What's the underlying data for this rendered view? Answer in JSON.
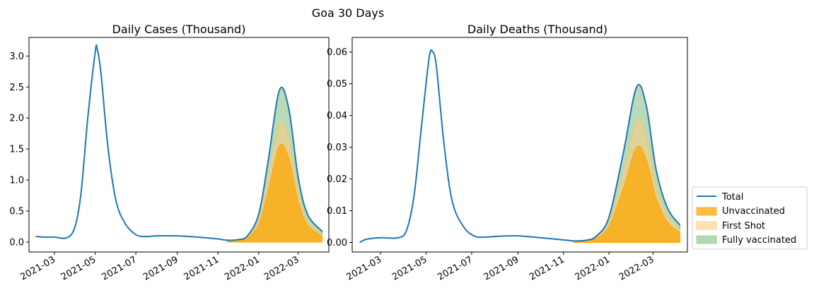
{
  "figure": {
    "suptitle": "Goa 30 Days"
  },
  "legend": {
    "placement": "lower-right outside",
    "entries": [
      {
        "label": "Total",
        "color": "#1f77b4",
        "kind": "line"
      },
      {
        "label": "Unvaccinated",
        "color": "#ffbb44",
        "kind": "area"
      },
      {
        "label": "First Shot",
        "color": "#ffe2b0",
        "kind": "area"
      },
      {
        "label": "Fully vaccinated",
        "color": "#b2dab2",
        "kind": "area"
      }
    ]
  },
  "chart_data": [
    {
      "type": "area",
      "title": "Daily Cases (Thousand)",
      "xlabel": "",
      "ylabel": "",
      "x_ticks": [
        "2021-03",
        "2021-05",
        "2021-07",
        "2021-09",
        "2021-11",
        "2022-01",
        "2022-03"
      ],
      "xlim": [
        "2021-01-22",
        "2022-04-16"
      ],
      "ylim": [
        -0.16,
        3.3
      ],
      "y_ticks": [
        0.0,
        0.5,
        1.0,
        1.5,
        2.0,
        2.5,
        3.0
      ],
      "y_tick_labels": [
        "0.0",
        "0.5",
        "1.0",
        "1.5",
        "2.0",
        "2.5",
        "3.0"
      ],
      "grid": false,
      "series": [
        {
          "name": "Total",
          "kind": "line",
          "color": "#1f77b4",
          "x": [
            "2021-02-01",
            "2021-02-15",
            "2021-03-01",
            "2021-03-20",
            "2021-04-01",
            "2021-04-10",
            "2021-04-20",
            "2021-05-01",
            "2021-05-04",
            "2021-05-10",
            "2021-05-20",
            "2021-06-01",
            "2021-06-15",
            "2021-07-01",
            "2021-07-15",
            "2021-08-01",
            "2021-09-01",
            "2021-10-01",
            "2021-11-01",
            "2021-11-15",
            "2021-12-01",
            "2021-12-15",
            "2022-01-01",
            "2022-01-15",
            "2022-02-01",
            "2022-02-15",
            "2022-03-01",
            "2022-03-15",
            "2022-04-06"
          ],
          "values": [
            0.09,
            0.08,
            0.08,
            0.07,
            0.25,
            0.8,
            2.0,
            3.05,
            3.12,
            2.7,
            1.55,
            0.68,
            0.3,
            0.12,
            0.09,
            0.1,
            0.1,
            0.08,
            0.05,
            0.03,
            0.04,
            0.1,
            0.45,
            1.3,
            2.45,
            2.15,
            1.05,
            0.45,
            0.17
          ]
        },
        {
          "name": "Unvaccinated",
          "kind": "area",
          "color": "#ffbb44",
          "x": [
            "2021-11-15",
            "2021-12-01",
            "2021-12-15",
            "2022-01-01",
            "2022-01-15",
            "2022-02-01",
            "2022-02-15",
            "2022-03-01",
            "2022-03-15",
            "2022-04-06"
          ],
          "values": [
            0.02,
            0.025,
            0.06,
            0.28,
            0.82,
            1.55,
            1.35,
            0.66,
            0.28,
            0.09
          ]
        },
        {
          "name": "First Shot",
          "kind": "area",
          "color": "#ffe2b0",
          "x": [
            "2021-11-15",
            "2021-12-01",
            "2021-12-15",
            "2022-01-01",
            "2022-01-15",
            "2022-02-01",
            "2022-02-15",
            "2022-03-01",
            "2022-03-15",
            "2022-04-06"
          ],
          "values": [
            0.025,
            0.03,
            0.075,
            0.35,
            1.02,
            1.9,
            1.66,
            0.81,
            0.35,
            0.11
          ]
        },
        {
          "name": "Fully vaccinated",
          "kind": "area",
          "color": "#b2dab2",
          "x": [
            "2021-11-15",
            "2021-12-01",
            "2021-12-15",
            "2022-01-01",
            "2022-01-15",
            "2022-02-01",
            "2022-02-15",
            "2022-03-01",
            "2022-03-15",
            "2022-04-06"
          ],
          "values": [
            0.03,
            0.04,
            0.1,
            0.45,
            1.3,
            2.45,
            2.15,
            1.05,
            0.45,
            0.17
          ]
        }
      ]
    },
    {
      "type": "area",
      "title": "Daily Deaths (Thousand)",
      "xlabel": "",
      "ylabel": "",
      "x_ticks": [
        "2021-03",
        "2021-05",
        "2021-07",
        "2021-09",
        "2021-11",
        "2022-01",
        "2022-03"
      ],
      "xlim": [
        "2021-01-22",
        "2022-04-16"
      ],
      "ylim": [
        -0.003,
        0.0646
      ],
      "y_ticks": [
        0.0,
        0.01,
        0.02,
        0.03,
        0.04,
        0.05,
        0.06
      ],
      "y_tick_labels": [
        "0.00",
        "0.01",
        "0.02",
        "0.03",
        "0.04",
        "0.05",
        "0.06"
      ],
      "grid": false,
      "series": [
        {
          "name": "Total",
          "kind": "line",
          "color": "#1f77b4",
          "x": [
            "2021-02-01",
            "2021-02-10",
            "2021-03-01",
            "2021-03-25",
            "2021-04-05",
            "2021-04-15",
            "2021-04-25",
            "2021-05-05",
            "2021-05-10",
            "2021-05-15",
            "2021-05-25",
            "2021-06-05",
            "2021-06-20",
            "2021-07-05",
            "2021-07-20",
            "2021-08-10",
            "2021-09-01",
            "2021-10-01",
            "2021-11-01",
            "2021-11-15",
            "2021-12-01",
            "2021-12-15",
            "2022-01-01",
            "2022-01-20",
            "2022-02-07",
            "2022-02-20",
            "2022-03-05",
            "2022-03-20",
            "2022-04-06"
          ],
          "values": [
            0.0,
            0.001,
            0.0015,
            0.0015,
            0.004,
            0.015,
            0.037,
            0.058,
            0.06,
            0.055,
            0.031,
            0.013,
            0.005,
            0.002,
            0.0017,
            0.002,
            0.0021,
            0.0015,
            0.0008,
            0.0005,
            0.0007,
            0.002,
            0.008,
            0.028,
            0.049,
            0.043,
            0.023,
            0.011,
            0.0055
          ]
        },
        {
          "name": "Unvaccinated",
          "kind": "area",
          "color": "#ffbb44",
          "x": [
            "2021-11-15",
            "2021-12-01",
            "2021-12-15",
            "2022-01-01",
            "2022-01-20",
            "2022-02-07",
            "2022-02-20",
            "2022-03-05",
            "2022-03-20",
            "2022-04-06"
          ],
          "values": [
            0.0004,
            0.0005,
            0.0013,
            0.005,
            0.017,
            0.03,
            0.026,
            0.014,
            0.0065,
            0.0032
          ]
        },
        {
          "name": "First Shot",
          "kind": "area",
          "color": "#ffe2b0",
          "x": [
            "2021-11-15",
            "2021-12-01",
            "2021-12-15",
            "2022-01-01",
            "2022-01-20",
            "2022-02-07",
            "2022-02-20",
            "2022-03-05",
            "2022-03-20",
            "2022-04-06"
          ],
          "values": [
            0.00045,
            0.0006,
            0.0016,
            0.0063,
            0.022,
            0.038,
            0.033,
            0.018,
            0.0085,
            0.0042
          ]
        },
        {
          "name": "Fully vaccinated",
          "kind": "area",
          "color": "#b2dab2",
          "x": [
            "2021-11-15",
            "2021-12-01",
            "2021-12-15",
            "2022-01-01",
            "2022-01-20",
            "2022-02-07",
            "2022-02-20",
            "2022-03-05",
            "2022-03-20",
            "2022-04-06"
          ],
          "values": [
            0.0005,
            0.0007,
            0.002,
            0.008,
            0.028,
            0.049,
            0.043,
            0.023,
            0.011,
            0.0055
          ]
        }
      ]
    }
  ]
}
